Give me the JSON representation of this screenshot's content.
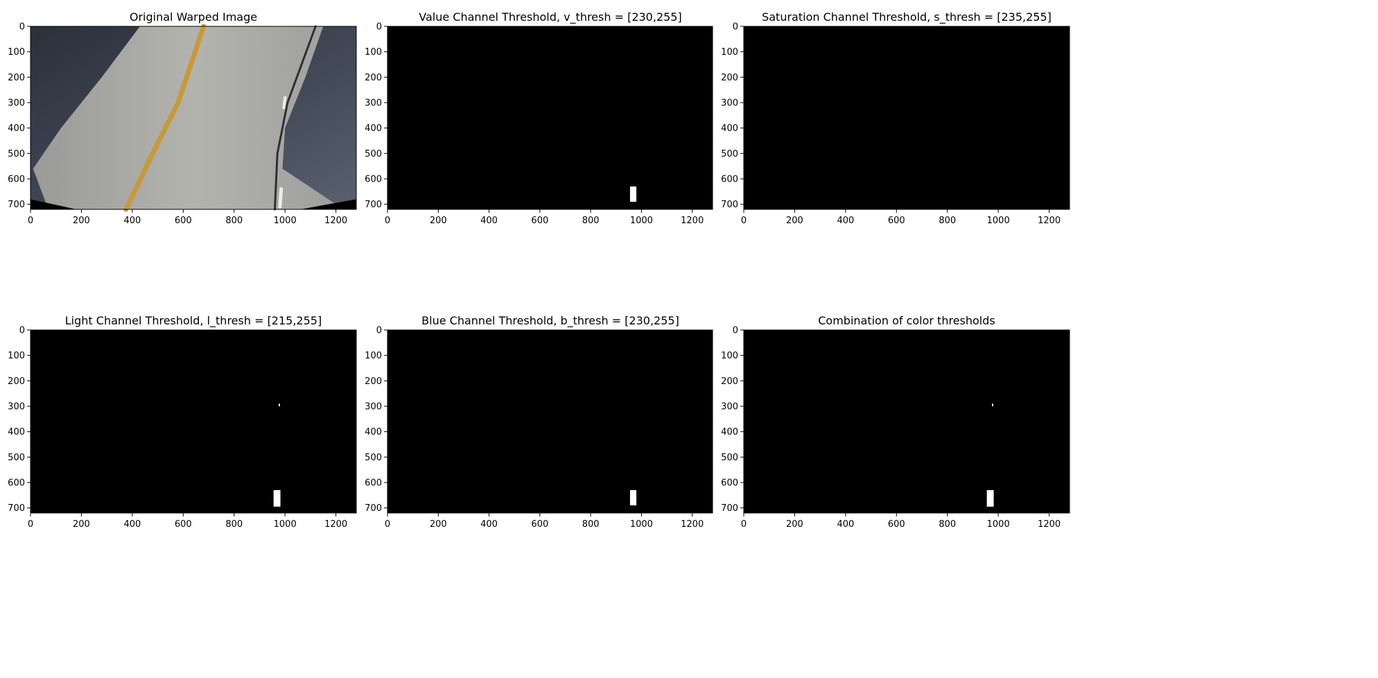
{
  "figure": {
    "panels": [
      {
        "id": "original",
        "kind": "photo",
        "title": "Original Warped Image"
      },
      {
        "id": "value",
        "kind": "binary",
        "title": "Value Channel Threshold, v_thresh = [230,255]"
      },
      {
        "id": "saturation",
        "kind": "binary",
        "title": "Saturation Channel Threshold, s_thresh = [235,255]"
      },
      {
        "id": "light",
        "kind": "binary",
        "title": "Light Channel Threshold, l_thresh = [215,255]"
      },
      {
        "id": "blue",
        "kind": "binary",
        "title": "Blue Channel Threshold, b_thresh = [230,255]"
      },
      {
        "id": "combined",
        "kind": "binary",
        "title": "Combination of color thresholds"
      }
    ]
  },
  "chart_data": [
    {
      "type": "image",
      "title": "Original Warped Image",
      "xlim": [
        0,
        1280
      ],
      "ylim": [
        720,
        0
      ],
      "xticks": [
        0,
        200,
        400,
        600,
        800,
        1000,
        1200
      ],
      "yticks": [
        0,
        100,
        200,
        300,
        400,
        500,
        600,
        700
      ],
      "colors": {
        "sky": "#3a414f",
        "road": "#a7a8a3",
        "yellow_line": "#c79a35",
        "crack": "#2e3035",
        "white_dash": "#ececec"
      },
      "features": [
        {
          "name": "yellow lane line",
          "points": [
            [
              375,
              720
            ],
            [
              470,
              520
            ],
            [
              580,
              300
            ],
            [
              680,
              0
            ]
          ]
        },
        {
          "name": "white dashed lane marks",
          "points": [
            [
              985,
              640
            ],
            [
              980,
              710
            ]
          ]
        },
        {
          "name": "crack",
          "points": [
            [
              960,
              720
            ],
            [
              970,
              500
            ],
            [
              1010,
              300
            ],
            [
              1120,
              0
            ]
          ]
        }
      ]
    },
    {
      "type": "image",
      "title": "Value Channel Threshold, v_thresh = [230,255]",
      "xlim": [
        0,
        1280
      ],
      "ylim": [
        720,
        0
      ],
      "xticks": [
        0,
        200,
        400,
        600,
        800,
        1000,
        1200
      ],
      "yticks": [
        0,
        100,
        200,
        300,
        400,
        500,
        600,
        700
      ],
      "white_pixel_regions": [
        {
          "x": [
            955,
            980
          ],
          "y": [
            630,
            690
          ]
        }
      ]
    },
    {
      "type": "image",
      "title": "Saturation Channel Threshold, s_thresh = [235,255]",
      "xlim": [
        0,
        1280
      ],
      "ylim": [
        720,
        0
      ],
      "xticks": [
        0,
        200,
        400,
        600,
        800,
        1000,
        1200
      ],
      "yticks": [
        0,
        100,
        200,
        300,
        400,
        500,
        600,
        700
      ],
      "white_pixel_regions": []
    },
    {
      "type": "image",
      "title": "Light Channel Threshold, l_thresh = [215,255]",
      "xlim": [
        0,
        1280
      ],
      "ylim": [
        720,
        0
      ],
      "xticks": [
        0,
        200,
        400,
        600,
        800,
        1000,
        1200
      ],
      "yticks": [
        0,
        100,
        200,
        300,
        400,
        500,
        600,
        700
      ],
      "white_pixel_regions": [
        {
          "x": [
            975,
            980
          ],
          "y": [
            290,
            300
          ]
        },
        {
          "x": [
            955,
            982
          ],
          "y": [
            630,
            695
          ]
        }
      ]
    },
    {
      "type": "image",
      "title": "Blue Channel Threshold, b_thresh = [230,255]",
      "xlim": [
        0,
        1280
      ],
      "ylim": [
        720,
        0
      ],
      "xticks": [
        0,
        200,
        400,
        600,
        800,
        1000,
        1200
      ],
      "yticks": [
        0,
        100,
        200,
        300,
        400,
        500,
        600,
        700
      ],
      "white_pixel_regions": [
        {
          "x": [
            955,
            980
          ],
          "y": [
            630,
            690
          ]
        }
      ]
    },
    {
      "type": "image",
      "title": "Combination of color thresholds",
      "xlim": [
        0,
        1280
      ],
      "ylim": [
        720,
        0
      ],
      "xticks": [
        0,
        200,
        400,
        600,
        800,
        1000,
        1200
      ],
      "yticks": [
        0,
        100,
        200,
        300,
        400,
        500,
        600,
        700
      ],
      "white_pixel_regions": [
        {
          "x": [
            975,
            980
          ],
          "y": [
            290,
            300
          ]
        },
        {
          "x": [
            955,
            982
          ],
          "y": [
            630,
            695
          ]
        }
      ]
    }
  ]
}
